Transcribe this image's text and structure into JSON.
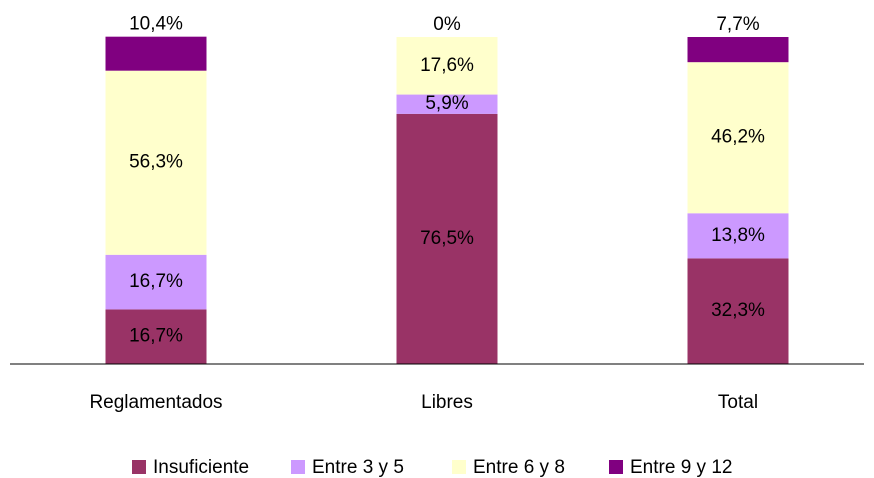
{
  "chart_data": {
    "type": "stacked_bar",
    "categories": [
      "Reglamentados",
      "Libres",
      "Total"
    ],
    "ylim": [
      0,
      100
    ],
    "series": [
      {
        "name": "Insuficiente",
        "color": "#993366",
        "values": [
          16.7,
          76.5,
          32.3
        ],
        "value_labels": [
          "16,7%",
          "76,5%",
          "32,3%"
        ]
      },
      {
        "name": "Entre 3 y 5",
        "color": "#cc99ff",
        "values": [
          16.7,
          5.9,
          13.8
        ],
        "value_labels": [
          "16,7%",
          "5,9%",
          "13,8%"
        ]
      },
      {
        "name": "Entre 6 y 8",
        "color": "#ffffcc",
        "values": [
          56.3,
          17.6,
          46.2
        ],
        "value_labels": [
          "56,3%",
          "17,6%",
          "46,2%"
        ]
      },
      {
        "name": "Entre 9 y 12",
        "color": "#800080",
        "values": [
          10.4,
          0,
          7.7
        ],
        "value_labels": [
          "10,4%",
          "0%",
          "7,7%"
        ]
      }
    ],
    "legend": "bottom"
  }
}
